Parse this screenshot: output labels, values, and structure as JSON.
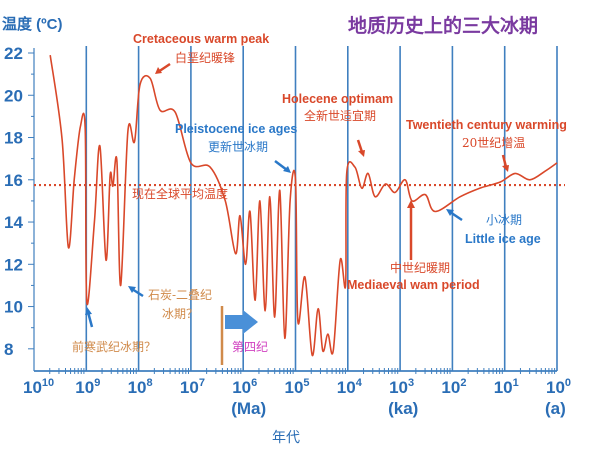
{
  "chart_data": {
    "type": "line",
    "title": "地质历史上的三大冰期",
    "ylabel": "温度 (ºC)",
    "xlabel": "年代",
    "x_scale": "log",
    "x_reversed": true,
    "xlim": [
      10000000000.0,
      1
    ],
    "ylim": [
      7,
      22
    ],
    "x_ticks": [
      {
        "value": 10000000000.0,
        "base": "10",
        "exp": "10",
        "unit": ""
      },
      {
        "value": 1000000000.0,
        "base": "10",
        "exp": "9",
        "unit": ""
      },
      {
        "value": 100000000.0,
        "base": "10",
        "exp": "8",
        "unit": ""
      },
      {
        "value": 10000000.0,
        "base": "10",
        "exp": "7",
        "unit": ""
      },
      {
        "value": 1000000.0,
        "base": "10",
        "exp": "6",
        "unit": "(Ma)"
      },
      {
        "value": 100000.0,
        "base": "10",
        "exp": "5",
        "unit": ""
      },
      {
        "value": 10000.0,
        "base": "10",
        "exp": "4",
        "unit": ""
      },
      {
        "value": 1000.0,
        "base": "10",
        "exp": "3",
        "unit": "(ka)"
      },
      {
        "value": 100.0,
        "base": "10",
        "exp": "2",
        "unit": ""
      },
      {
        "value": 10.0,
        "base": "10",
        "exp": "1",
        "unit": ""
      },
      {
        "value": 1,
        "base": "10",
        "exp": "0",
        "unit": "(a)"
      }
    ],
    "y_ticks": [
      8,
      10,
      12,
      14,
      16,
      18,
      20,
      22
    ],
    "grid": "vertical lines at each decade",
    "colors": {
      "curve": "#d9482a",
      "grid": "#3f7fbf",
      "reference": "#d9482a",
      "title": "#7a3aa0",
      "axis_text": "#2a6db5"
    },
    "reference_line": {
      "value": 15.75,
      "label": "现在全球平均温度"
    },
    "series": [
      {
        "x": [
          4900000000.0,
          2900000000.0,
          2200000000.0,
          1700000000.0,
          1300000000.0,
          1050000000.0,
          980000000.0,
          700000000.0,
          550000000.0,
          420000000.0,
          350000000.0,
          310000000.0,
          260000000.0,
          220000000.0,
          160000000.0,
          120000000.0,
          94000000.0,
          60000000.0,
          39000000.0,
          20000000.0,
          10000000.0,
          4300000.0,
          2200000.0,
          1400000.0,
          1150000.0,
          900000.0,
          740000.0,
          590000.0,
          480000.0,
          380000.0,
          310000.0,
          250000.0,
          200000.0,
          160000.0,
          127000.0,
          100000.0,
          90000.0,
          66000.0,
          48000.0,
          37000.0,
          30000.0,
          24000.0,
          19000.0,
          14000.0,
          11000.0,
          10500.0,
          7300,
          5400,
          4100,
          3000,
          1900,
          1250,
          800,
          590,
          330,
          214,
          71,
          30,
          12,
          6.3,
          3.3,
          1.7,
          1
        ],
        "y": [
          21.9,
          17.9,
          12.8,
          16,
          18.5,
          18.4,
          10.2,
          14,
          17.6,
          12.2,
          16.2,
          15.7,
          16.9,
          11,
          18.3,
          17.8,
          20.5,
          20.8,
          19.3,
          19.2,
          16.8,
          16.6,
          15,
          12.5,
          14.3,
          12,
          14.5,
          10.3,
          15,
          9.8,
          15.2,
          9.5,
          15.5,
          8.5,
          15,
          16,
          9.3,
          11.4,
          7.7,
          9.9,
          7.9,
          8.7,
          7.9,
          12.2,
          11,
          16.3,
          16.6,
          15.6,
          16.3,
          15.2,
          15.8,
          15.4,
          16,
          15,
          15.3,
          14.5,
          15.2,
          15.6,
          15.9,
          16.3,
          16,
          16.4,
          16.8
        ]
      }
    ],
    "annotations": {
      "cretaceous_en": "Cretaceous warm peak",
      "cretaceous_zh": "白垩纪暖锋",
      "pleistocene_en": "Pleistocene ice ages",
      "pleistocene_zh": "更新世冰期",
      "holocene_en": "Holecene optimam",
      "holocene_zh": "全新世适宜期",
      "twentieth_en": "Twentieth century warming",
      "twentieth_zh": "20世纪增温",
      "little_ice_zh": "小冰期",
      "little_ice_en": "Little ice age",
      "mediaeval_zh": "中世纪暖期",
      "mediaeval_en": "Mediaeval wam period",
      "carboniferous_zh_1": "石炭-二叠纪",
      "carboniferous_zh_2": "冰期？",
      "precambrian_zh": "前寒武纪冰期？",
      "quaternary_zh": "第四纪"
    }
  }
}
